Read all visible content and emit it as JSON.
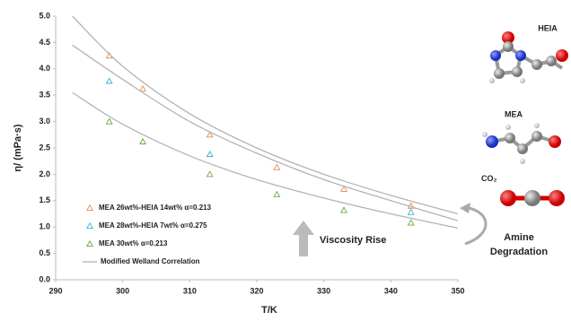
{
  "chart_data": {
    "type": "scatter",
    "x_label": "T/K",
    "y_label": "η/ (mPa·s)",
    "xlim": [
      290,
      350
    ],
    "xticks": [
      290,
      300,
      310,
      320,
      330,
      340,
      350
    ],
    "ylim": [
      0,
      5
    ],
    "yticks": [
      {
        "value": 0,
        "label": "0.0"
      },
      0.5,
      {
        "value": 1,
        "label": "1.0"
      },
      1.5,
      {
        "value": 2,
        "label": "2.0"
      },
      2.5,
      {
        "value": 3,
        "label": "3.0"
      },
      3.5,
      {
        "value": 4,
        "label": "4.0"
      },
      4.5,
      {
        "value": 5,
        "label": "5.0"
      }
    ],
    "series": [
      {
        "name": "MEA 26wt%-HEIA 14wt% α=0.213",
        "color": "#e8894a",
        "x": [
          298,
          303,
          313,
          323,
          333,
          343
        ],
        "values": [
          4.25,
          3.62,
          2.75,
          2.13,
          1.72,
          1.4
        ]
      },
      {
        "name": "MEA 28wt%-HEIA 7wt% α=0.275",
        "color": "#3bb0dc",
        "x": [
          298,
          313,
          343
        ],
        "values": [
          3.77,
          2.38,
          1.28
        ]
      },
      {
        "name": "MEA 30wt% α=0.213",
        "color": "#6aaa3a",
        "x": [
          298,
          303,
          313,
          323,
          333,
          343
        ],
        "values": [
          3.0,
          2.62,
          2.0,
          1.62,
          1.32,
          1.08
        ]
      }
    ],
    "curves": {
      "name": "Modified Welland Correlation",
      "color": "#b4b4b4",
      "x": [
        292.5,
        300,
        310,
        320,
        330,
        340,
        350
      ],
      "lines": [
        [
          5.0,
          4.05,
          3.15,
          2.5,
          2.0,
          1.6,
          1.25
        ],
        [
          4.45,
          3.8,
          3.0,
          2.4,
          1.9,
          1.5,
          1.12
        ],
        [
          3.55,
          2.95,
          2.35,
          1.9,
          1.55,
          1.25,
          0.98
        ]
      ]
    },
    "annotations": [
      "Viscosity Rise",
      "Amine",
      "Degradation"
    ],
    "molecules": [
      "HEIA",
      "MEA",
      "CO₂"
    ]
  }
}
